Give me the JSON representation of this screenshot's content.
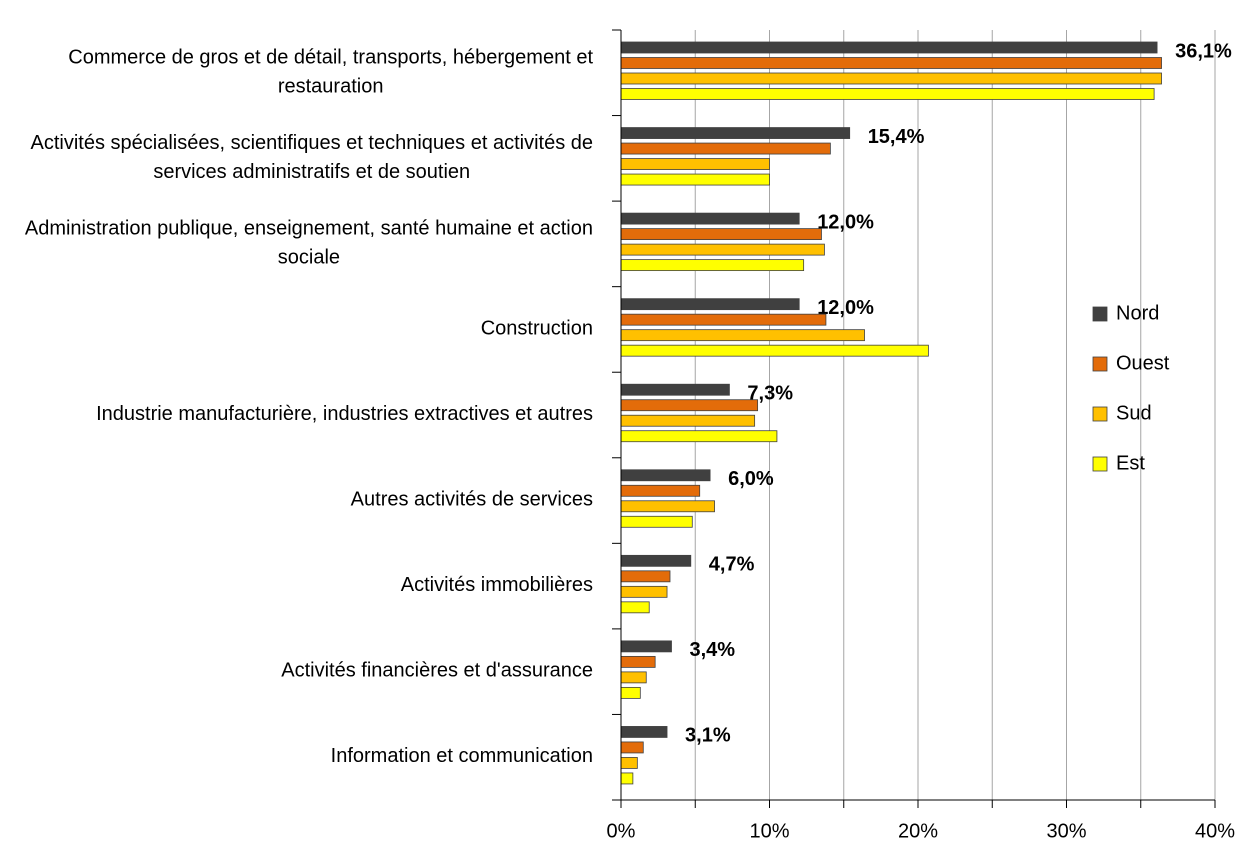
{
  "chart_data": {
    "type": "hbar",
    "categories": [
      "Commerce de gros et de détail, transports, hébergement et restauration",
      "Activités spécialisées, scientifiques et techniques et activités de services administratifs et de soutien",
      "Administration publique, enseignement, santé humaine et action sociale",
      "Construction",
      "Industrie manufacturière, industries extractives et autres",
      "Autres activités de services",
      "Activités immobilières",
      "Activités financières et d'assurance",
      "Information et communication"
    ],
    "series": [
      {
        "name": "Nord",
        "color": "#404040",
        "values": [
          36.1,
          15.4,
          12.0,
          12.0,
          7.3,
          6.0,
          4.7,
          3.4,
          3.1
        ],
        "value_labels": [
          "36,1%",
          "15,4%",
          "12,0%",
          "12,0%",
          "7,3%",
          "6,0%",
          "4,7%",
          "3,4%",
          "3,1%"
        ]
      },
      {
        "name": "Ouest",
        "color": "#e36c0a",
        "values": [
          36.4,
          14.1,
          13.5,
          13.8,
          9.2,
          5.3,
          3.3,
          2.3,
          1.5
        ]
      },
      {
        "name": "Sud",
        "color": "#ffc000",
        "values": [
          36.4,
          10.0,
          13.7,
          16.4,
          9.0,
          6.3,
          3.1,
          1.7,
          1.1
        ]
      },
      {
        "name": "Est",
        "color": "#ffff00",
        "values": [
          35.9,
          10.0,
          12.3,
          20.7,
          10.5,
          4.8,
          1.9,
          1.3,
          0.8
        ]
      }
    ],
    "xlim": [
      0,
      40
    ],
    "xticks": [
      {
        "value": 0,
        "label": "0%"
      },
      {
        "value": 10,
        "label": "10%"
      },
      {
        "value": 20,
        "label": "20%"
      },
      {
        "value": 30,
        "label": "30%"
      },
      {
        "value": 40,
        "label": "40%"
      }
    ],
    "xminor": [
      5,
      15,
      25,
      35
    ],
    "grid": true,
    "legend": "right"
  }
}
